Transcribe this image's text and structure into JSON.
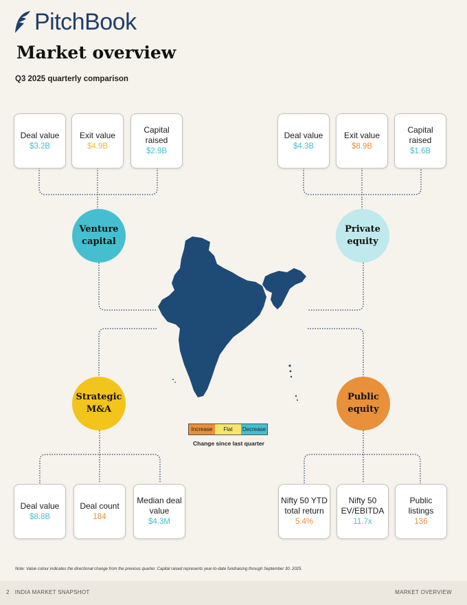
{
  "brand": {
    "name": "PitchBook"
  },
  "title": "Market overview",
  "subtitle": "Q3 2025 quarterly comparison",
  "colors": {
    "increase": "#e8903a",
    "flat": "#e5c13a",
    "decrease": "#45bfcf",
    "navy": "#1e4a76"
  },
  "vc": {
    "label": "Venture capital",
    "cards": [
      {
        "label": "Deal value",
        "value": "$3.2B",
        "trend": "decrease"
      },
      {
        "label": "Exit value",
        "value": "$4.9B",
        "trend": "flat"
      },
      {
        "label": "Capital raised",
        "value": "$2.9B",
        "trend": "decrease"
      }
    ]
  },
  "pe": {
    "label": "Private equity",
    "cards": [
      {
        "label": "Deal value",
        "value": "$4.3B",
        "trend": "decrease"
      },
      {
        "label": "Exit value",
        "value": "$8.9B",
        "trend": "increase"
      },
      {
        "label": "Capital raised",
        "value": "$1.6B",
        "trend": "decrease"
      }
    ]
  },
  "ma": {
    "label": "Strategic M&A",
    "cards": [
      {
        "label": "Deal value",
        "value": "$8.8B",
        "trend": "decrease"
      },
      {
        "label": "Deal count",
        "value": "184",
        "trend": "increase"
      },
      {
        "label": "Median deal value",
        "value": "$4.3M",
        "trend": "decrease"
      }
    ]
  },
  "pub": {
    "label": "Public equity",
    "cards": [
      {
        "label": "Nifty 50 YTD total return",
        "value": "5.4%",
        "trend": "increase"
      },
      {
        "label": "Nifty 50 EV/EBITDA",
        "value": "11.7x",
        "trend": "decrease"
      },
      {
        "label": "Public listings",
        "value": "136",
        "trend": "increase"
      }
    ]
  },
  "legend": {
    "increase": "Increase",
    "flat": "Flat",
    "decrease": "Decrease",
    "caption": "Change since last quarter"
  },
  "note": "Note: Value colour indicates the directional change from the previous quarter. Capital raised represents year-to-date fundraising through September 30, 2025.",
  "footer": {
    "page": "2",
    "left": "INDIA MARKET SNAPSHOT",
    "right": "MARKET OVERVIEW"
  }
}
